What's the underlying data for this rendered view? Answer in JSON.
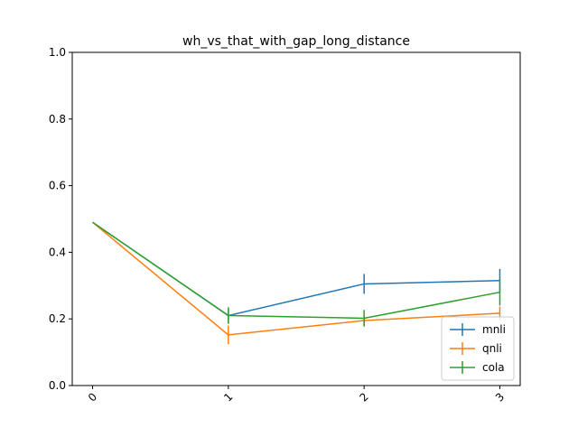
{
  "chart_data": {
    "type": "line",
    "title": "wh_vs_that_with_gap_long_distance",
    "xlabel": "",
    "ylabel": "",
    "x": [
      0,
      1,
      2,
      3
    ],
    "x_tick_labels": [
      "0",
      "1",
      "2",
      "3"
    ],
    "xlim": [
      -0.15,
      3.15
    ],
    "ylim": [
      0.0,
      1.0
    ],
    "y_ticks": [
      0.0,
      0.2,
      0.4,
      0.6,
      0.8,
      1.0
    ],
    "y_tick_labels": [
      "0.0",
      "0.2",
      "0.4",
      "0.6",
      "0.8",
      "1.0"
    ],
    "grid": false,
    "legend_position": "lower-right",
    "series": [
      {
        "name": "mnli",
        "color": "#1f77b4",
        "values": [
          0.49,
          0.21,
          0.305,
          0.315
        ],
        "errors": [
          0.0,
          0.02,
          0.03,
          0.035
        ]
      },
      {
        "name": "qnli",
        "color": "#ff7f0e",
        "values": [
          0.49,
          0.152,
          0.195,
          0.217
        ],
        "errors": [
          0.0,
          0.028,
          0.015,
          0.02
        ]
      },
      {
        "name": "cola",
        "color": "#2ca02c",
        "values": [
          0.49,
          0.21,
          0.202,
          0.28
        ],
        "errors": [
          0.0,
          0.025,
          0.025,
          0.04
        ]
      }
    ]
  }
}
